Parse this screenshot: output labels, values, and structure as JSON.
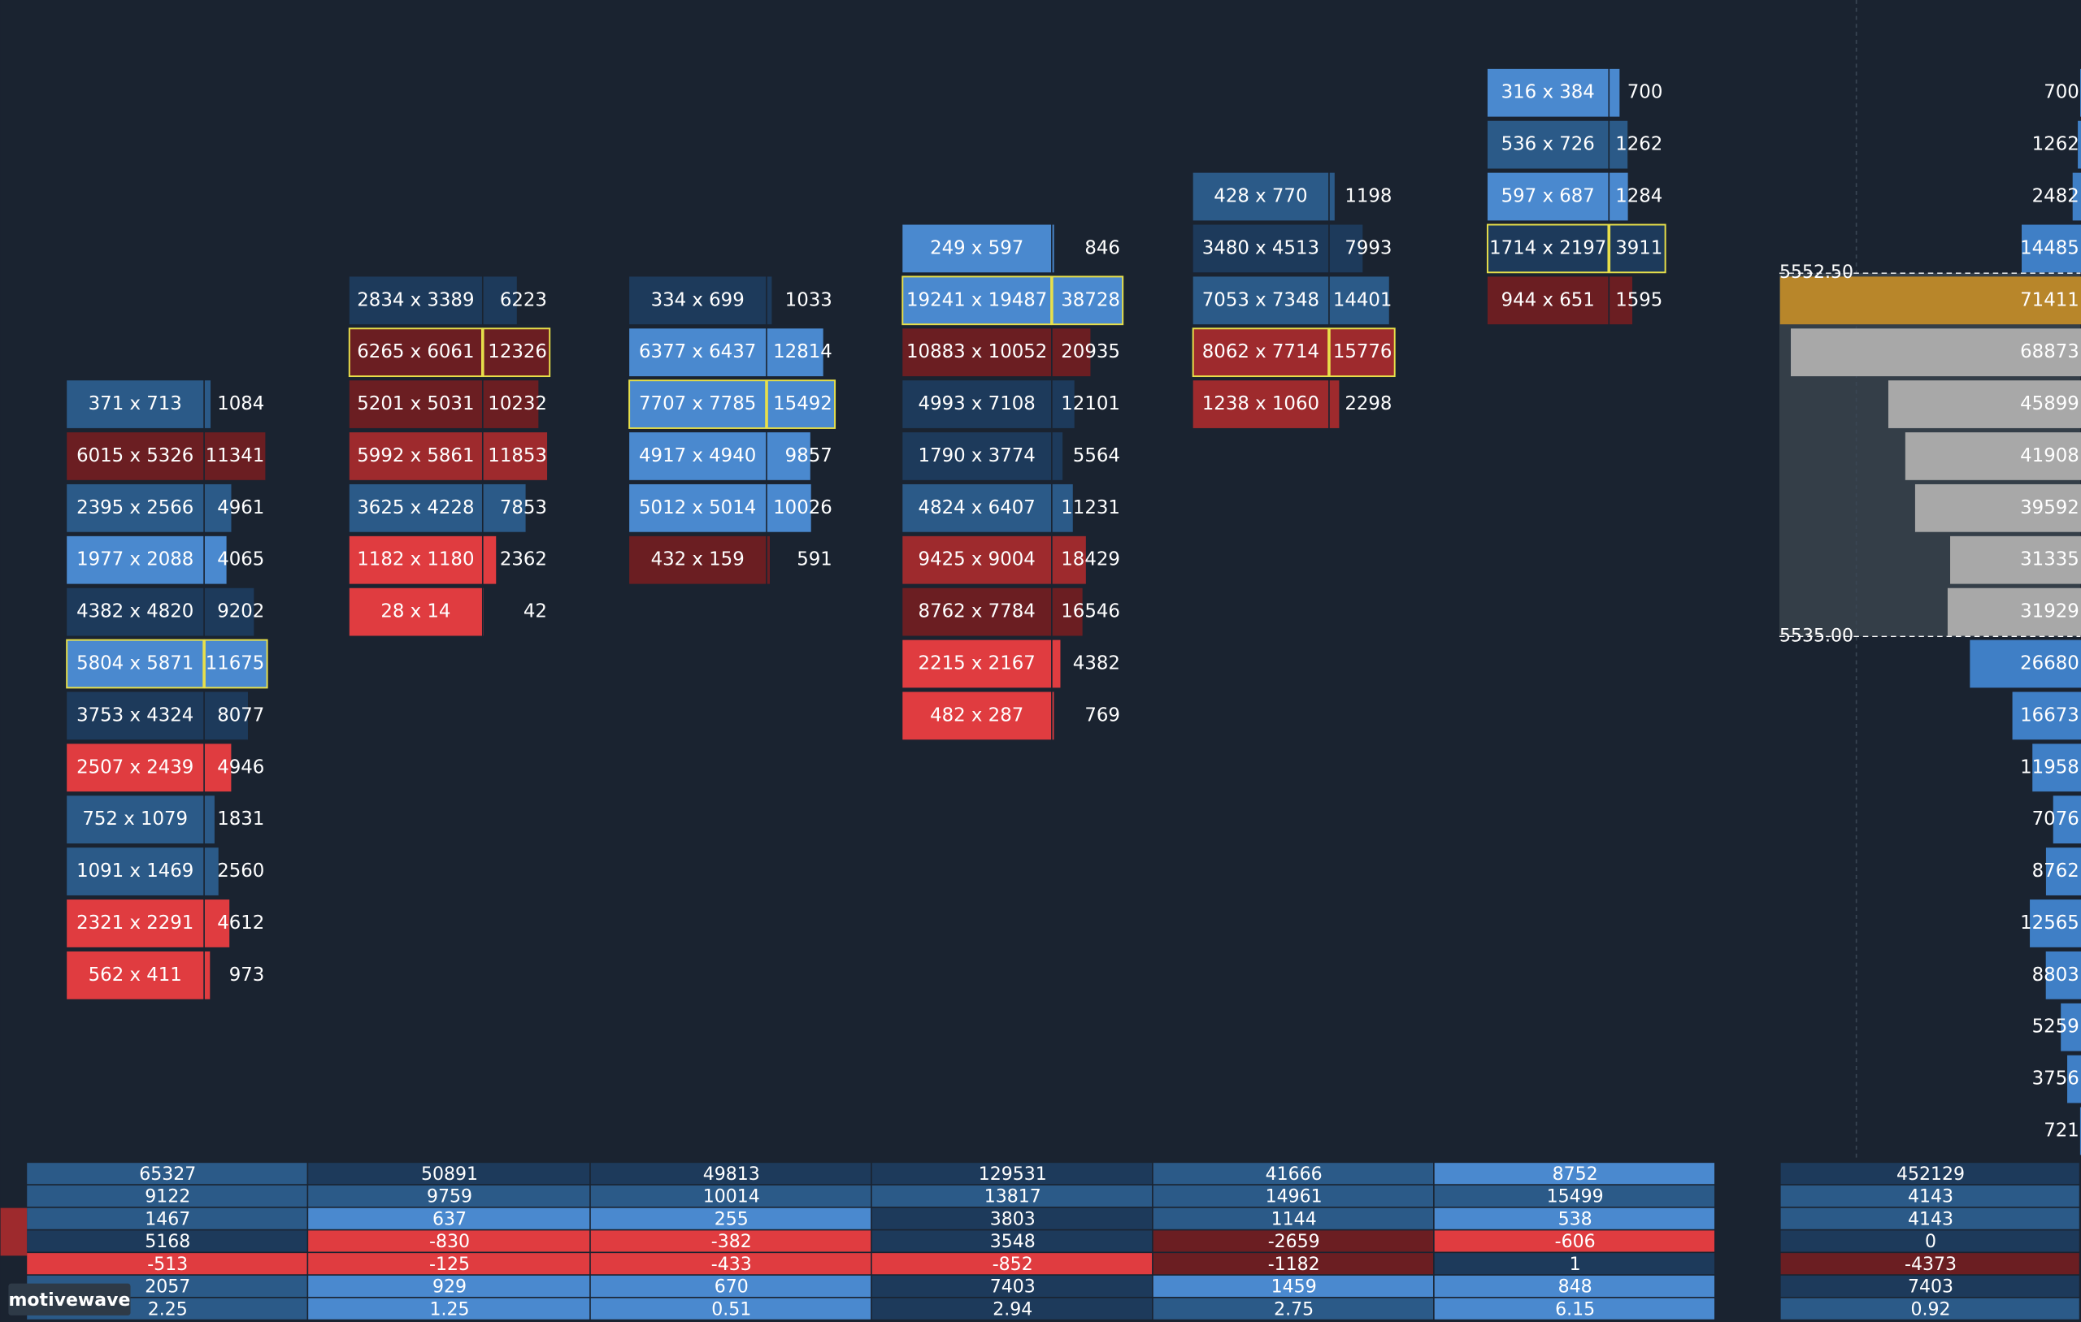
{
  "footprint": {
    "columns": [
      {
        "cells": [
          {
            "label": "371 x 713",
            "total": 1084,
            "color": "#2b5a88",
            "highlight": false
          },
          {
            "label": "6015 x 5326",
            "total": 11341,
            "color": "#6b1e22",
            "highlight": false
          },
          {
            "label": "2395 x 2566",
            "total": 4961,
            "color": "#2b5a88",
            "highlight": false
          },
          {
            "label": "1977 x 2088",
            "total": 4065,
            "color": "#4a89cf",
            "highlight": false
          },
          {
            "label": "4382 x 4820",
            "total": 9202,
            "color": "#1d3a5b",
            "highlight": false
          },
          {
            "label": "5804 x 5871",
            "total": 11675,
            "color": "#4a89cf",
            "highlight": true
          },
          {
            "label": "3753 x 4324",
            "total": 8077,
            "color": "#1d3a5b",
            "highlight": false
          },
          {
            "label": "2507 x 2439",
            "total": 4946,
            "color": "#e03c40",
            "highlight": false
          },
          {
            "label": "752 x 1079",
            "total": 1831,
            "color": "#2b5a88",
            "highlight": false
          },
          {
            "label": "1091 x 1469",
            "total": 2560,
            "color": "#2b5a88",
            "highlight": false
          },
          {
            "label": "2321 x 2291",
            "total": 4612,
            "color": "#e03c40",
            "highlight": false
          },
          {
            "label": "562 x 411",
            "total": 973,
            "color": "#e03c40",
            "highlight": false
          }
        ]
      },
      {
        "cells": [
          {
            "label": "2834 x 3389",
            "total": 6223,
            "color": "#1d3a5b",
            "highlight": false
          },
          {
            "label": "6265 x 6061",
            "total": 12326,
            "color": "#6b1e22",
            "highlight": true
          },
          {
            "label": "5201 x 5031",
            "total": 10232,
            "color": "#6b1e22",
            "highlight": false
          },
          {
            "label": "5992 x 5861",
            "total": 11853,
            "color": "#9e2a2d",
            "highlight": false
          },
          {
            "label": "3625 x 4228",
            "total": 7853,
            "color": "#2b5a88",
            "highlight": false
          },
          {
            "label": "1182 x 1180",
            "total": 2362,
            "color": "#e03c40",
            "highlight": false
          },
          {
            "label": "28 x 14",
            "total": 42,
            "color": "#e03c40",
            "highlight": false
          }
        ]
      },
      {
        "cells": [
          {
            "label": "334 x 699",
            "total": 1033,
            "color": "#1d3a5b",
            "highlight": false
          },
          {
            "label": "6377 x 6437",
            "total": 12814,
            "color": "#4a89cf",
            "highlight": false
          },
          {
            "label": "7707 x 7785",
            "total": 15492,
            "color": "#4a89cf",
            "highlight": true
          },
          {
            "label": "4917 x 4940",
            "total": 9857,
            "color": "#4a89cf",
            "highlight": false
          },
          {
            "label": "5012 x 5014",
            "total": 10026,
            "color": "#4a89cf",
            "highlight": false
          },
          {
            "label": "432 x 159",
            "total": 591,
            "color": "#6b1e22",
            "highlight": false
          }
        ]
      },
      {
        "cells": [
          {
            "label": "249 x 597",
            "total": 846,
            "color": "#4a89cf",
            "highlight": false
          },
          {
            "label": "19241 x 19487",
            "total": 38728,
            "color": "#4a89cf",
            "highlight": true
          },
          {
            "label": "10883 x 10052",
            "total": 20935,
            "color": "#6b1e22",
            "highlight": false
          },
          {
            "label": "4993 x 7108",
            "total": 12101,
            "color": "#1d3a5b",
            "highlight": false
          },
          {
            "label": "1790 x 3774",
            "total": 5564,
            "color": "#1d3a5b",
            "highlight": false
          },
          {
            "label": "4824 x 6407",
            "total": 11231,
            "color": "#2b5a88",
            "highlight": false
          },
          {
            "label": "9425 x 9004",
            "total": 18429,
            "color": "#9e2a2d",
            "highlight": false
          },
          {
            "label": "8762 x 7784",
            "total": 16546,
            "color": "#6b1e22",
            "highlight": false
          },
          {
            "label": "2215 x 2167",
            "total": 4382,
            "color": "#e03c40",
            "highlight": false
          },
          {
            "label": "482 x 287",
            "total": 769,
            "color": "#e03c40",
            "highlight": false
          }
        ]
      },
      {
        "cells": [
          {
            "label": "428 x 770",
            "total": 1198,
            "color": "#2b5a88",
            "highlight": false
          },
          {
            "label": "3480 x 4513",
            "total": 7993,
            "color": "#1d3a5b",
            "highlight": false
          },
          {
            "label": "7053 x 7348",
            "total": 14401,
            "color": "#2b5a88",
            "highlight": false
          },
          {
            "label": "8062 x 7714",
            "total": 15776,
            "color": "#9e2a2d",
            "highlight": true
          },
          {
            "label": "1238 x 1060",
            "total": 2298,
            "color": "#9e2a2d",
            "highlight": false
          }
        ]
      },
      {
        "cells": [
          {
            "label": "316 x 384",
            "total": 700,
            "color": "#4a89cf",
            "highlight": false
          },
          {
            "label": "536 x 726",
            "total": 1262,
            "color": "#2b5a88",
            "highlight": false
          },
          {
            "label": "597 x 687",
            "total": 1284,
            "color": "#4a89cf",
            "highlight": false
          },
          {
            "label": "1714 x 2197",
            "total": 3911,
            "color": "#1d3a5b",
            "highlight": true
          },
          {
            "label": "944 x 651",
            "total": 1595,
            "color": "#6b1e22",
            "highlight": false
          }
        ]
      }
    ]
  },
  "profile": {
    "price_labels": [
      "5552.50",
      "5535.00"
    ],
    "bars": [
      {
        "value": 700,
        "color": "#3f7fc6"
      },
      {
        "value": 1262,
        "color": "#3f7fc6"
      },
      {
        "value": 2482,
        "color": "#3f7fc6"
      },
      {
        "value": 14485,
        "color": "#3f7fc6"
      },
      {
        "value": 71411,
        "color": "#b8862a"
      },
      {
        "value": 68873,
        "color": "#a8a8a8"
      },
      {
        "value": 45899,
        "color": "#a8a8a8"
      },
      {
        "value": 41908,
        "color": "#a8a8a8"
      },
      {
        "value": 39592,
        "color": "#a8a8a8"
      },
      {
        "value": 31335,
        "color": "#a8a8a8"
      },
      {
        "value": 31929,
        "color": "#a8a8a8"
      },
      {
        "value": 26680,
        "color": "#3f7fc6"
      },
      {
        "value": 16673,
        "color": "#3f7fc6"
      },
      {
        "value": 11958,
        "color": "#3f7fc6"
      },
      {
        "value": 7076,
        "color": "#3f7fc6"
      },
      {
        "value": 8762,
        "color": "#3f7fc6"
      },
      {
        "value": 12565,
        "color": "#3f7fc6"
      },
      {
        "value": 8803,
        "color": "#3f7fc6"
      },
      {
        "value": 5259,
        "color": "#3f7fc6"
      },
      {
        "value": 3756,
        "color": "#3f7fc6"
      },
      {
        "value": 721,
        "color": "#3f7fc6"
      }
    ]
  },
  "summary": {
    "rows": [
      [
        {
          "value": 65327,
          "color": "#2b5a88"
        },
        {
          "value": 50891,
          "color": "#1d3a5b"
        },
        {
          "value": 49813,
          "color": "#1d3a5b"
        },
        {
          "value": 129531,
          "color": "#1d3a5b"
        },
        {
          "value": 41666,
          "color": "#2b5a88"
        },
        {
          "value": 8752,
          "color": "#4a89cf"
        },
        {
          "value": 452129,
          "color": "#1d3a5b"
        }
      ],
      [
        {
          "value": 9122,
          "color": "#2b5a88"
        },
        {
          "value": 9759,
          "color": "#2b5a88"
        },
        {
          "value": 10014,
          "color": "#2b5a88"
        },
        {
          "value": 13817,
          "color": "#2b5a88"
        },
        {
          "value": 14961,
          "color": "#2b5a88"
        },
        {
          "value": 15499,
          "color": "#2b5a88"
        },
        {
          "value": 4143,
          "color": "#2b5a88"
        }
      ],
      [
        {
          "value": 1467,
          "color": "#2b5a88"
        },
        {
          "value": 637,
          "color": "#4a89cf"
        },
        {
          "value": 255,
          "color": "#4a89cf"
        },
        {
          "value": 3803,
          "color": "#1d3a5b"
        },
        {
          "value": 1144,
          "color": "#2b5a88"
        },
        {
          "value": 538,
          "color": "#4a89cf"
        },
        {
          "value": 4143,
          "color": "#2b5a88"
        }
      ],
      [
        {
          "value": 5168,
          "color": "#1d3a5b"
        },
        {
          "value": -830,
          "color": "#e03c40"
        },
        {
          "value": -382,
          "color": "#e03c40"
        },
        {
          "value": 3548,
          "color": "#1d3a5b"
        },
        {
          "value": -2659,
          "color": "#6b1e22"
        },
        {
          "value": -606,
          "color": "#e03c40"
        },
        {
          "value": 0,
          "color": "#1d3a5b"
        }
      ],
      [
        {
          "value": -513,
          "color": "#e03c40"
        },
        {
          "value": -125,
          "color": "#e03c40"
        },
        {
          "value": -433,
          "color": "#e03c40"
        },
        {
          "value": -852,
          "color": "#e03c40"
        },
        {
          "value": -1182,
          "color": "#6b1e22"
        },
        {
          "value": 1,
          "color": "#1d3a5b"
        },
        {
          "value": -4373,
          "color": "#6b1e22"
        }
      ],
      [
        {
          "value": 2057,
          "color": "#2b5a88"
        },
        {
          "value": 929,
          "color": "#4a89cf"
        },
        {
          "value": 670,
          "color": "#4a89cf"
        },
        {
          "value": 7403,
          "color": "#1d3a5b"
        },
        {
          "value": 1459,
          "color": "#4a89cf"
        },
        {
          "value": 848,
          "color": "#4a89cf"
        },
        {
          "value": 7403,
          "color": "#1d3a5b"
        }
      ],
      [
        {
          "value": 2.25,
          "color": "#2b5a88"
        },
        {
          "value": 1.25,
          "color": "#4a89cf"
        },
        {
          "value": 0.51,
          "color": "#4a89cf"
        },
        {
          "value": 2.94,
          "color": "#1d3a5b"
        },
        {
          "value": 2.75,
          "color": "#2b5a88"
        },
        {
          "value": 6.15,
          "color": "#4a89cf"
        },
        {
          "value": 0.92,
          "color": "#2b5a88"
        }
      ]
    ]
  },
  "watermark": "motivewave"
}
